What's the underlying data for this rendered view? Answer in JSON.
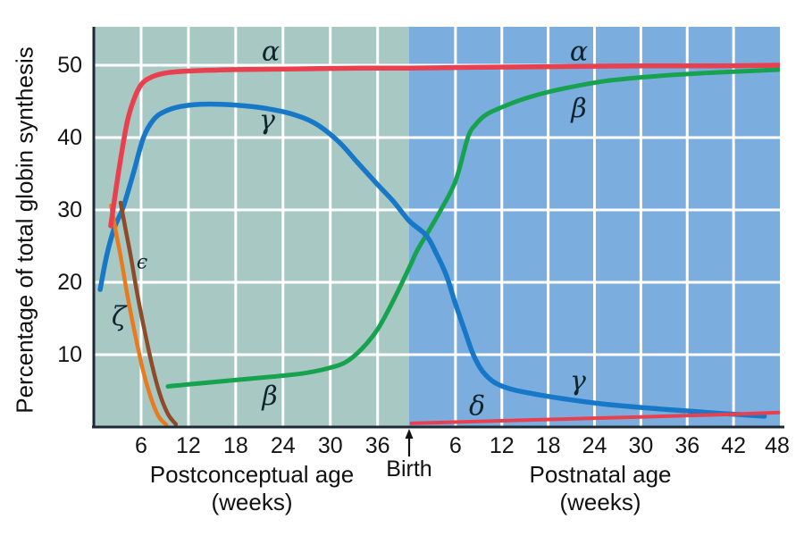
{
  "figure": {
    "y_axis_title": "Percentage of total globin synthesis",
    "x1_title_line1": "Postconceptual age",
    "x1_title_line2": "(weeks)",
    "x2_title_line1": "Postnatal age",
    "x2_title_line2": "(weeks)",
    "birth_label": "Birth"
  },
  "colors": {
    "prenatal_background": "#a8c8c4",
    "postnatal_background": "#7badde",
    "gridline": "#ffffff",
    "axis": "#1e2a33",
    "text": "#151515",
    "alpha_red": "#e8404e",
    "gamma_blue": "#1878c8",
    "beta_green": "#17a24f",
    "zeta_orange": "#e87b1e",
    "epsilon_brown": "#8f4a2a",
    "delta_red": "#e8404e"
  },
  "chart_data": {
    "type": "line",
    "title": "",
    "ylabel": "Percentage of total globin synthesis",
    "ylim": [
      0,
      55
    ],
    "y_ticks": [
      10,
      20,
      30,
      40,
      50
    ],
    "grid": true,
    "x_unit": "weeks",
    "birth_at_postconceptual_week": 40,
    "x_axes": [
      {
        "label": "Postconceptual age (weeks)",
        "ticks": [
          6,
          12,
          18,
          24,
          30,
          36
        ],
        "range_weeks": [
          0,
          40
        ]
      },
      {
        "label": "Postnatal age (weeks)",
        "ticks": [
          6,
          12,
          18,
          24,
          30,
          36,
          42,
          48
        ],
        "range_weeks": [
          0,
          48
        ]
      }
    ],
    "series": [
      {
        "name": "beta",
        "label": "β",
        "color": "#17a24f",
        "width": 5,
        "points": [
          [
            9.4,
            5.6
          ],
          [
            12,
            5.9
          ],
          [
            16,
            6.3
          ],
          [
            20,
            6.7
          ],
          [
            24,
            7.1
          ],
          [
            27,
            7.5
          ],
          [
            30,
            8.2
          ],
          [
            32,
            9.0
          ],
          [
            34,
            10.8
          ],
          [
            36,
            13.5
          ],
          [
            38,
            17.5
          ],
          [
            40,
            22.0
          ],
          [
            41,
            24.3
          ],
          [
            42.2,
            26.5
          ],
          [
            44,
            29.8
          ],
          [
            46,
            34.0
          ],
          [
            47.6,
            40.0
          ],
          [
            48.6,
            41.8
          ],
          [
            50,
            43.2
          ],
          [
            52,
            44.2
          ],
          [
            55,
            45.4
          ],
          [
            58,
            46.3
          ],
          [
            62,
            47.2
          ],
          [
            66,
            47.9
          ],
          [
            72,
            48.5
          ],
          [
            78,
            48.9
          ],
          [
            84,
            49.2
          ],
          [
            88,
            49.4
          ]
        ]
      },
      {
        "name": "gamma",
        "label": "γ",
        "color": "#1878c8",
        "width": 5.5,
        "points": [
          [
            0.8,
            19.0
          ],
          [
            1.6,
            23.5
          ],
          [
            2.6,
            27.5
          ],
          [
            3.7,
            30.3
          ],
          [
            5,
            35.0
          ],
          [
            6.3,
            40.0
          ],
          [
            7.6,
            42.5
          ],
          [
            9,
            43.6
          ],
          [
            11,
            44.3
          ],
          [
            13.5,
            44.6
          ],
          [
            16,
            44.6
          ],
          [
            19,
            44.4
          ],
          [
            22,
            44.0
          ],
          [
            25,
            43.3
          ],
          [
            28,
            42.0
          ],
          [
            31,
            39.5
          ],
          [
            33.5,
            36.5
          ],
          [
            36,
            33.5
          ],
          [
            38,
            31.2
          ],
          [
            40,
            28.5
          ],
          [
            42.2,
            26.5
          ],
          [
            43.5,
            24.0
          ],
          [
            44.8,
            21.0
          ],
          [
            46,
            17.0
          ],
          [
            47.3,
            13.0
          ],
          [
            48.3,
            10.0
          ],
          [
            49.5,
            7.7
          ],
          [
            51,
            6.2
          ],
          [
            53,
            5.3
          ],
          [
            56,
            4.6
          ],
          [
            60,
            3.9
          ],
          [
            65,
            3.2
          ],
          [
            70,
            2.7
          ],
          [
            75,
            2.3
          ],
          [
            80,
            1.9
          ],
          [
            83,
            1.7
          ],
          [
            86,
            1.5
          ]
        ]
      },
      {
        "name": "zeta",
        "label": "ζ",
        "color": "#e87b1e",
        "width": 4.5,
        "points": [
          [
            2.2,
            30.6
          ],
          [
            2.8,
            27.0
          ],
          [
            3.5,
            23.0
          ],
          [
            4.3,
            18.0
          ],
          [
            5.2,
            13.0
          ],
          [
            6.2,
            8.0
          ],
          [
            7.2,
            4.2
          ],
          [
            8.2,
            1.5
          ],
          [
            9.2,
            0.3
          ]
        ]
      },
      {
        "name": "epsilon",
        "label": "ϵ",
        "color": "#8f4a2a",
        "width": 4.5,
        "points": [
          [
            3.4,
            31.0
          ],
          [
            4,
            27.5
          ],
          [
            4.7,
            23.5
          ],
          [
            5.5,
            18.5
          ],
          [
            6.4,
            13.5
          ],
          [
            7.4,
            8.5
          ],
          [
            8.4,
            4.5
          ],
          [
            9.4,
            1.8
          ],
          [
            10.4,
            0.4
          ]
        ]
      },
      {
        "name": "alpha",
        "label": "α",
        "color": "#e8404e",
        "width": 5.5,
        "points": [
          [
            2.15,
            27.8
          ],
          [
            2.7,
            32.0
          ],
          [
            3.4,
            37.0
          ],
          [
            4.2,
            42.0
          ],
          [
            5,
            45.0
          ],
          [
            6,
            47.3
          ],
          [
            7.2,
            48.3
          ],
          [
            9,
            48.9
          ],
          [
            12,
            49.2
          ],
          [
            18,
            49.4
          ],
          [
            26,
            49.5
          ],
          [
            34,
            49.6
          ],
          [
            40,
            49.6
          ],
          [
            48,
            49.7
          ],
          [
            58,
            49.8
          ],
          [
            70,
            49.9
          ],
          [
            80,
            49.9
          ],
          [
            88,
            50.0
          ]
        ]
      },
      {
        "name": "delta",
        "label": "δ",
        "color": "#e8404e",
        "width": 4,
        "points": [
          [
            40.3,
            0.5
          ],
          [
            50,
            0.8
          ],
          [
            60,
            1.1
          ],
          [
            70,
            1.4
          ],
          [
            80,
            1.7
          ],
          [
            88,
            2.0
          ]
        ]
      }
    ],
    "annotations": [
      {
        "text": "α",
        "series": "alpha",
        "t": 22.4,
        "v": 51.8,
        "size": 30
      },
      {
        "text": "α",
        "series": "alpha",
        "t": 62.0,
        "v": 51.9,
        "size": 30
      },
      {
        "text": "γ",
        "series": "gamma",
        "t": 22.0,
        "v": 42.3,
        "size": 30
      },
      {
        "text": "γ",
        "series": "gamma",
        "t": 61.9,
        "v": 6.3,
        "size": 30
      },
      {
        "text": "β",
        "series": "beta",
        "t": 22.3,
        "v": 4.2,
        "size": 30
      },
      {
        "text": "β",
        "series": "beta",
        "t": 62.0,
        "v": 44.0,
        "size": 30
      },
      {
        "text": "δ",
        "series": "delta",
        "t": 48.8,
        "v": 2.9,
        "size": 30
      },
      {
        "text": "ϵ",
        "series": "epsilon",
        "t": 6.1,
        "v": 22.7,
        "size": 22
      },
      {
        "text": "ζ",
        "series": "zeta",
        "t": 3.2,
        "v": 15.2,
        "size": 30
      }
    ]
  }
}
